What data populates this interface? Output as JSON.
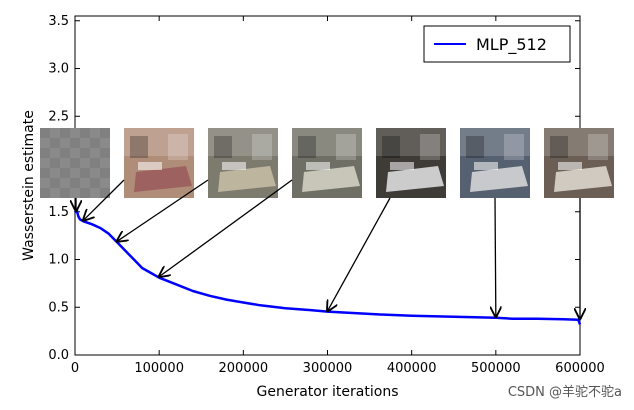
{
  "chart_data": {
    "type": "line",
    "xlabel": "Generator iterations",
    "ylabel": "Wasserstein estimate",
    "xlim": [
      0,
      600000
    ],
    "ylim": [
      0,
      3.55
    ],
    "xticks": [
      0,
      100000,
      200000,
      300000,
      400000,
      500000,
      600000
    ],
    "xtick_labels": [
      "0",
      "100000",
      "200000",
      "300000",
      "400000",
      "500000",
      "600000"
    ],
    "yticks": [
      0.0,
      0.5,
      1.0,
      1.5,
      2.0,
      2.5,
      3.0,
      3.5
    ],
    "ytick_labels": [
      "0.0",
      "0.5",
      "1.0",
      "1.5",
      "2.0",
      "2.5",
      "3.0",
      "3.5"
    ],
    "grid": false,
    "legend_position": "top-right",
    "series": [
      {
        "name": "MLP_512",
        "color": "#0000ff",
        "x": [
          0,
          2000,
          4000,
          6000,
          10000,
          20000,
          30000,
          40000,
          50000,
          60000,
          70000,
          80000,
          90000,
          100000,
          120000,
          140000,
          160000,
          180000,
          200000,
          220000,
          250000,
          280000,
          300000,
          330000,
          360000,
          400000,
          450000,
          500000,
          520000,
          550000,
          580000,
          598000,
          600000
        ],
        "y": [
          1.49,
          1.52,
          1.45,
          1.42,
          1.4,
          1.37,
          1.33,
          1.27,
          1.18,
          1.09,
          1.0,
          0.91,
          0.86,
          0.81,
          0.74,
          0.67,
          0.62,
          0.58,
          0.55,
          0.52,
          0.49,
          0.47,
          0.455,
          0.44,
          0.425,
          0.41,
          0.4,
          0.39,
          0.38,
          0.38,
          0.375,
          0.37,
          0.32
        ]
      }
    ],
    "annotations": [
      {
        "target_x": 2000,
        "target_y": 1.5,
        "sample_index": 0
      },
      {
        "target_x": 10000,
        "target_y": 1.4,
        "sample_index": 1
      },
      {
        "target_x": 50000,
        "target_y": 1.18,
        "sample_index": 2
      },
      {
        "target_x": 100000,
        "target_y": 0.81,
        "sample_index": 3
      },
      {
        "target_x": 300000,
        "target_y": 0.45,
        "sample_index": 4
      },
      {
        "target_x": 500000,
        "target_y": 0.39,
        "sample_index": 5
      },
      {
        "target_x": 600000,
        "target_y": 0.37,
        "sample_index": 6
      }
    ],
    "sample_images": [
      {
        "name": "noise-sample",
        "base": "#8a8a8a",
        "accent": "#7a7a7a"
      },
      {
        "name": "bedroom-sample-1",
        "base": "#b08d78",
        "accent": "#9a5a5a"
      },
      {
        "name": "bedroom-sample-2",
        "base": "#7d7a6e",
        "accent": "#c9c0a8"
      },
      {
        "name": "bedroom-sample-3",
        "base": "#6f6f65",
        "accent": "#d8d6c8"
      },
      {
        "name": "bedroom-sample-4",
        "base": "#3f3b36",
        "accent": "#e6e6e6"
      },
      {
        "name": "bedroom-sample-5",
        "base": "#556070",
        "accent": "#dcdcdc"
      },
      {
        "name": "bedroom-sample-6",
        "base": "#6a5e55",
        "accent": "#e2ddd5"
      }
    ]
  },
  "watermark": "CSDN @羊驼不驼a"
}
